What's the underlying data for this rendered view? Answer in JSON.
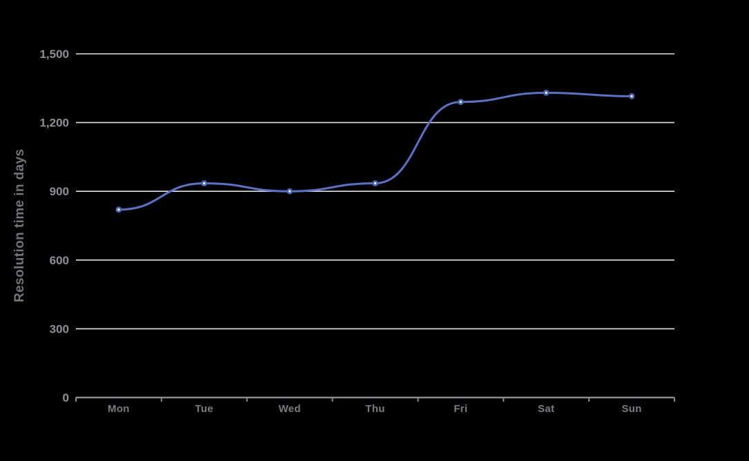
{
  "chart_data": {
    "type": "line",
    "title": "",
    "xlabel": "",
    "ylabel": "Resolution time in days",
    "categories": [
      "Mon",
      "Tue",
      "Wed",
      "Thu",
      "Fri",
      "Sat",
      "Sun"
    ],
    "series": [
      {
        "name": "Resolution time in days",
        "values": [
          820,
          935,
          900,
          935,
          1290,
          1330,
          1315
        ]
      }
    ],
    "ylim": [
      0,
      1500
    ],
    "yticks": [
      0,
      300,
      600,
      900,
      1200,
      1500
    ],
    "ytick_labels": [
      "0",
      "300",
      "600",
      "900",
      "1,200",
      "1,500"
    ],
    "grid": true,
    "legend": false,
    "smooth": true,
    "marker_style": "circle-with-white-center",
    "colors": {
      "background": "#000000",
      "line": "#5b72c5",
      "marker": "#4c63b6",
      "marker_center": "#ffffff",
      "gridline": "#e2e2e8",
      "axis": "#8a8a92",
      "y_tick_label": "#8f8f97",
      "x_tick_label": "#7b7b85",
      "axis_title": "#74747c"
    }
  }
}
